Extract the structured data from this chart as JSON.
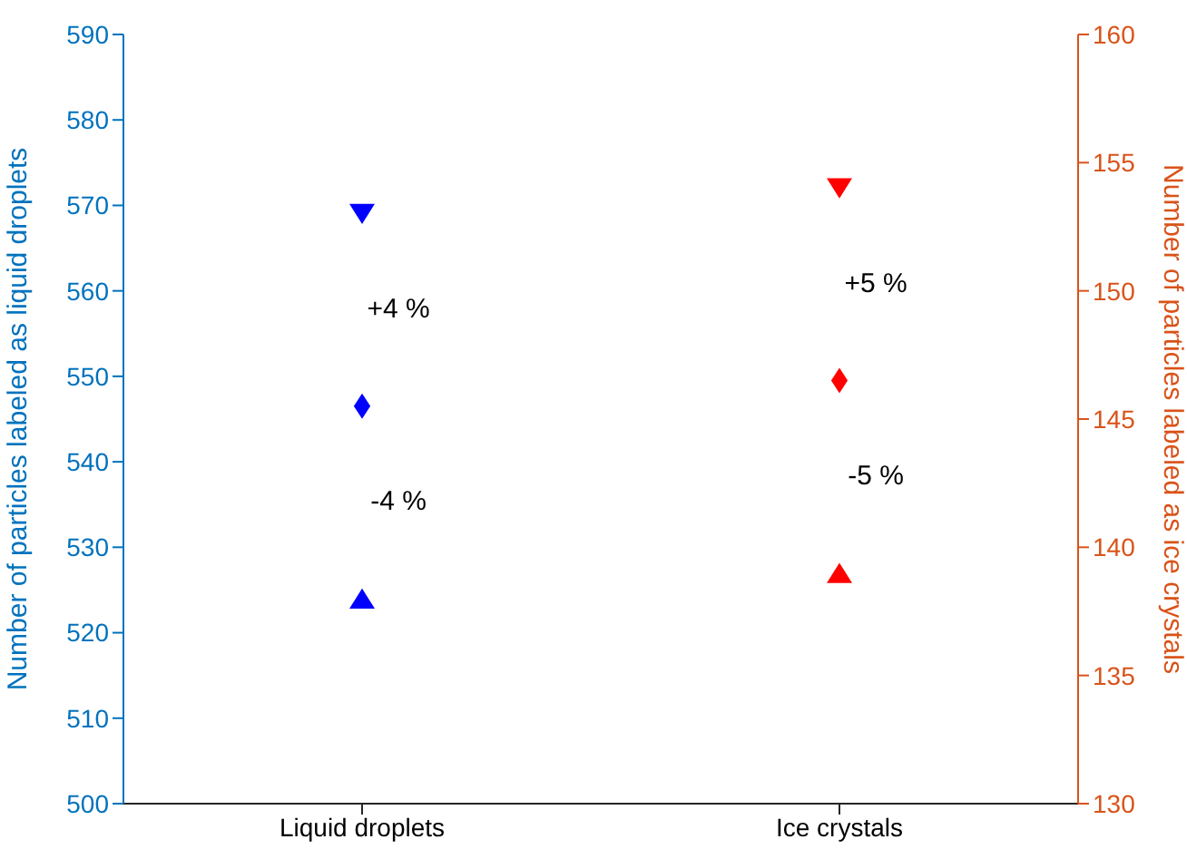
{
  "chart_data": {
    "type": "scatter",
    "categories": [
      "Liquid droplets",
      "Ice crystals"
    ],
    "ylabel": "Number of particles labeled as liquid droplets",
    "y2label": "Number of particles labeled as ice crystals",
    "ylim": [
      500,
      590
    ],
    "yticks": [
      500,
      510,
      520,
      530,
      540,
      550,
      560,
      570,
      580,
      590
    ],
    "y2lim": [
      130,
      160
    ],
    "y2ticks": [
      130,
      135,
      140,
      145,
      150,
      155,
      160
    ],
    "series": [
      {
        "color": "#0000ff",
        "marker": "triangle-down",
        "values": [
          569,
          null
        ]
      },
      {
        "color": "#0000ff",
        "marker": "diamond",
        "values": [
          546.5,
          null
        ]
      },
      {
        "color": "#0000ff",
        "marker": "triangle",
        "values": [
          524,
          null
        ]
      },
      {
        "color": "#ff0000",
        "marker": "triangle-down",
        "axis": "y2",
        "values": [
          null,
          154
        ]
      },
      {
        "color": "#ff0000",
        "marker": "diamond",
        "axis": "y2",
        "values": [
          null,
          146.5
        ]
      },
      {
        "color": "#ff0000",
        "marker": "triangle",
        "axis": "y2",
        "values": [
          null,
          139
        ]
      }
    ],
    "annotations": [
      "+4 %",
      "-4 %",
      "+5 %",
      "-5 %"
    ],
    "grid": false,
    "legend": false
  }
}
